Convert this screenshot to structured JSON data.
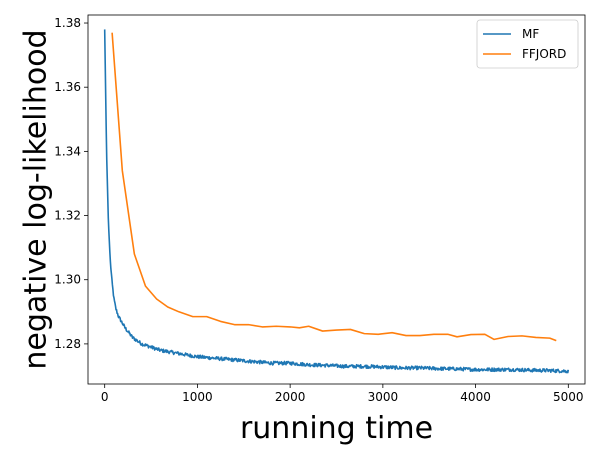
{
  "chart_data": {
    "type": "line",
    "title": "",
    "xlabel": "running time",
    "ylabel": "negative log-likelihood",
    "xlim": [
      -180,
      5180
    ],
    "ylim": [
      1.2675,
      1.3825
    ],
    "xticks": [
      0,
      1000,
      2000,
      3000,
      4000,
      5000
    ],
    "yticks": [
      1.28,
      1.3,
      1.32,
      1.34,
      1.36,
      1.38
    ],
    "ytick_labels": [
      "1.28",
      "1.30",
      "1.32",
      "1.34",
      "1.36",
      "1.38"
    ],
    "grid": false,
    "legend_position": "top-right",
    "series": [
      {
        "name": "MF",
        "color": "#1f77b4",
        "noisy": true,
        "x": [
          0,
          20,
          40,
          60,
          80,
          100,
          120,
          150,
          180,
          220,
          260,
          300,
          350,
          400,
          450,
          500,
          600,
          700,
          800,
          900,
          1000,
          1200,
          1400,
          1600,
          1800,
          2000,
          2200,
          2400,
          2600,
          2800,
          3000,
          3200,
          3400,
          3600,
          3800,
          4000,
          4200,
          4400,
          4600,
          4800,
          5000
        ],
        "y": [
          1.378,
          1.34,
          1.318,
          1.306,
          1.299,
          1.294,
          1.291,
          1.2885,
          1.287,
          1.285,
          1.2835,
          1.282,
          1.281,
          1.28,
          1.2795,
          1.279,
          1.278,
          1.2775,
          1.277,
          1.2765,
          1.276,
          1.2755,
          1.275,
          1.2745,
          1.274,
          1.274,
          1.2735,
          1.2733,
          1.273,
          1.273,
          1.2728,
          1.2725,
          1.2725,
          1.2723,
          1.2722,
          1.272,
          1.272,
          1.272,
          1.2718,
          1.2717,
          1.2715
        ]
      },
      {
        "name": "FFJORD",
        "color": "#ff7f0e",
        "noisy": false,
        "x": [
          80,
          190,
          320,
          440,
          560,
          680,
          800,
          950,
          1100,
          1250,
          1400,
          1550,
          1700,
          1850,
          2000,
          2100,
          2200,
          2350,
          2500,
          2650,
          2800,
          2950,
          3100,
          3250,
          3400,
          3550,
          3700,
          3800,
          3950,
          4100,
          4200,
          4350,
          4500,
          4650,
          4800,
          4870
        ],
        "y": [
          1.377,
          1.334,
          1.308,
          1.298,
          1.294,
          1.2915,
          1.29,
          1.2885,
          1.2885,
          1.287,
          1.286,
          1.286,
          1.2853,
          1.2855,
          1.2853,
          1.285,
          1.2855,
          1.284,
          1.2843,
          1.2845,
          1.2832,
          1.283,
          1.2835,
          1.2826,
          1.2826,
          1.283,
          1.283,
          1.2822,
          1.2829,
          1.283,
          1.2814,
          1.2823,
          1.2825,
          1.282,
          1.2818,
          1.281
        ]
      }
    ]
  }
}
